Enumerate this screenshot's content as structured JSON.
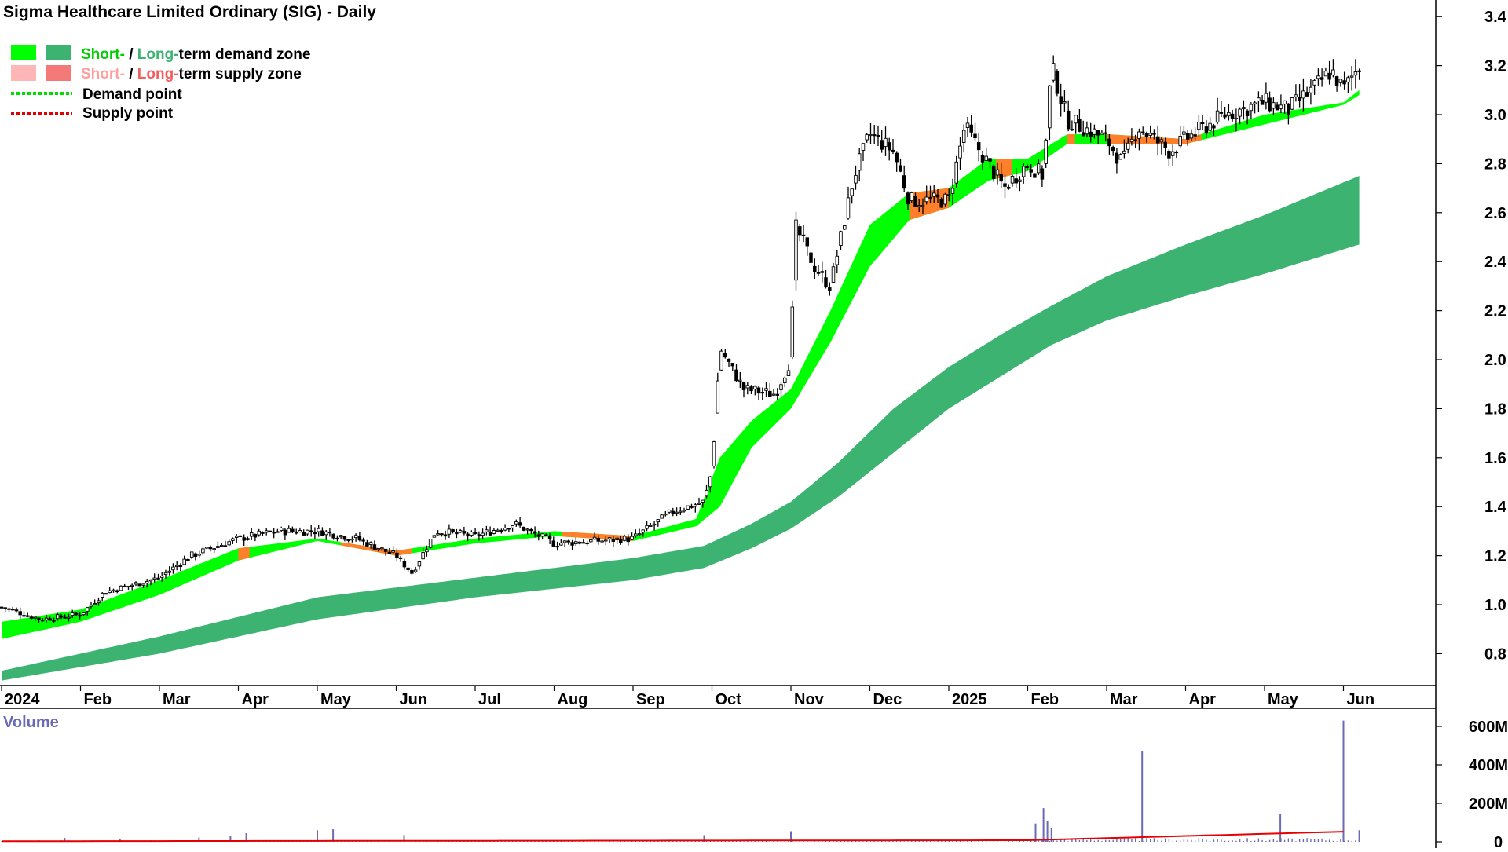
{
  "chart_data": {
    "type": "candlestick",
    "title": "Sigma Healthcare Limited Ordinary (SIG) - Daily",
    "legend": {
      "demand_zone": {
        "short": "Short-",
        "sep": "/",
        "long": "Long-",
        "rest": "term demand zone"
      },
      "supply_zone": {
        "short": "Short-",
        "sep": "/",
        "long": "Long-",
        "rest": "term supply zone"
      },
      "demand_point": "Demand point",
      "supply_point": "Supply point",
      "placement": "top-left"
    },
    "x_ticks": [
      "2024",
      "Feb",
      "Mar",
      "Apr",
      "May",
      "Jun",
      "Jul",
      "Aug",
      "Sep",
      "Oct",
      "Nov",
      "Dec",
      "2025",
      "Feb",
      "Mar",
      "Apr",
      "May",
      "Jun"
    ],
    "y_ticks": [
      "3.4",
      "3.2",
      "3.0",
      "2.8",
      "2.6",
      "2.4",
      "2.2",
      "2.0",
      "1.8",
      "1.6",
      "1.4",
      "1.2",
      "1.0",
      "0.8"
    ],
    "ylim": [
      0.65,
      3.45
    ],
    "price_anchors": [
      {
        "t": 0.0,
        "p": 0.99
      },
      {
        "t": 0.5,
        "p": 0.94
      },
      {
        "t": 1.0,
        "p": 0.96
      },
      {
        "t": 1.3,
        "p": 1.05
      },
      {
        "t": 2.0,
        "p": 1.11
      },
      {
        "t": 2.4,
        "p": 1.2
      },
      {
        "t": 3.0,
        "p": 1.27
      },
      {
        "t": 3.5,
        "p": 1.3
      },
      {
        "t": 4.0,
        "p": 1.3
      },
      {
        "t": 4.5,
        "p": 1.27
      },
      {
        "t": 5.0,
        "p": 1.2
      },
      {
        "t": 5.2,
        "p": 1.13
      },
      {
        "t": 5.5,
        "p": 1.3
      },
      {
        "t": 6.0,
        "p": 1.28
      },
      {
        "t": 6.5,
        "p": 1.33
      },
      {
        "t": 7.0,
        "p": 1.25
      },
      {
        "t": 7.5,
        "p": 1.26
      },
      {
        "t": 8.0,
        "p": 1.27
      },
      {
        "t": 8.5,
        "p": 1.38
      },
      {
        "t": 8.9,
        "p": 1.42
      },
      {
        "t": 9.0,
        "p": 1.55
      },
      {
        "t": 9.1,
        "p": 2.05
      },
      {
        "t": 9.4,
        "p": 1.88
      },
      {
        "t": 9.8,
        "p": 1.86
      },
      {
        "t": 10.0,
        "p": 2.0
      },
      {
        "t": 10.05,
        "p": 2.55
      },
      {
        "t": 10.3,
        "p": 2.38
      },
      {
        "t": 10.5,
        "p": 2.3
      },
      {
        "t": 10.8,
        "p": 2.75
      },
      {
        "t": 11.0,
        "p": 2.92
      },
      {
        "t": 11.3,
        "p": 2.85
      },
      {
        "t": 11.5,
        "p": 2.65
      },
      {
        "t": 12.0,
        "p": 2.65
      },
      {
        "t": 12.2,
        "p": 2.95
      },
      {
        "t": 12.5,
        "p": 2.8
      },
      {
        "t": 12.7,
        "p": 2.7
      },
      {
        "t": 13.0,
        "p": 2.8
      },
      {
        "t": 13.2,
        "p": 2.75
      },
      {
        "t": 13.3,
        "p": 3.2
      },
      {
        "t": 13.5,
        "p": 2.98
      },
      {
        "t": 14.0,
        "p": 2.9
      },
      {
        "t": 14.2,
        "p": 2.8
      },
      {
        "t": 14.4,
        "p": 2.95
      },
      {
        "t": 14.8,
        "p": 2.85
      },
      {
        "t": 15.0,
        "p": 2.9
      },
      {
        "t": 15.5,
        "p": 3.0
      },
      {
        "t": 16.0,
        "p": 3.05
      },
      {
        "t": 16.3,
        "p": 3.02
      },
      {
        "t": 16.6,
        "p": 3.1
      },
      {
        "t": 16.85,
        "p": 3.18
      },
      {
        "t": 17.0,
        "p": 3.1
      },
      {
        "t": 17.2,
        "p": 3.2
      }
    ],
    "long_zone_upper": [
      {
        "t": 0,
        "p": 0.73
      },
      {
        "t": 2,
        "p": 0.87
      },
      {
        "t": 4,
        "p": 1.03
      },
      {
        "t": 6,
        "p": 1.11
      },
      {
        "t": 8,
        "p": 1.19
      },
      {
        "t": 8.9,
        "p": 1.24
      },
      {
        "t": 9.5,
        "p": 1.33
      },
      {
        "t": 10,
        "p": 1.42
      },
      {
        "t": 10.6,
        "p": 1.58
      },
      {
        "t": 11.3,
        "p": 1.8
      },
      {
        "t": 12,
        "p": 1.97
      },
      {
        "t": 12.7,
        "p": 2.11
      },
      {
        "t": 13.3,
        "p": 2.22
      },
      {
        "t": 14,
        "p": 2.34
      },
      {
        "t": 15,
        "p": 2.47
      },
      {
        "t": 16,
        "p": 2.59
      },
      {
        "t": 17.2,
        "p": 2.75
      }
    ],
    "long_zone_lower": [
      {
        "t": 0,
        "p": 0.69
      },
      {
        "t": 2,
        "p": 0.8
      },
      {
        "t": 4,
        "p": 0.94
      },
      {
        "t": 6,
        "p": 1.03
      },
      {
        "t": 8,
        "p": 1.1
      },
      {
        "t": 8.9,
        "p": 1.15
      },
      {
        "t": 9.5,
        "p": 1.23
      },
      {
        "t": 10,
        "p": 1.31
      },
      {
        "t": 10.6,
        "p": 1.44
      },
      {
        "t": 11.3,
        "p": 1.62
      },
      {
        "t": 12,
        "p": 1.8
      },
      {
        "t": 12.7,
        "p": 1.94
      },
      {
        "t": 13.3,
        "p": 2.06
      },
      {
        "t": 14,
        "p": 2.16
      },
      {
        "t": 15,
        "p": 2.26
      },
      {
        "t": 16,
        "p": 2.35
      },
      {
        "t": 17.2,
        "p": 2.47
      }
    ],
    "short_zone_upper": [
      {
        "t": 0,
        "p": 0.93
      },
      {
        "t": 1,
        "p": 0.98
      },
      {
        "t": 2,
        "p": 1.1
      },
      {
        "t": 3,
        "p": 1.23
      },
      {
        "t": 4,
        "p": 1.27
      },
      {
        "t": 5,
        "p": 1.22
      },
      {
        "t": 6,
        "p": 1.27
      },
      {
        "t": 7,
        "p": 1.3
      },
      {
        "t": 8,
        "p": 1.28
      },
      {
        "t": 8.8,
        "p": 1.35
      },
      {
        "t": 9.1,
        "p": 1.6
      },
      {
        "t": 9.5,
        "p": 1.75
      },
      {
        "t": 10,
        "p": 1.88
      },
      {
        "t": 10.5,
        "p": 2.2
      },
      {
        "t": 11,
        "p": 2.55
      },
      {
        "t": 11.5,
        "p": 2.68
      },
      {
        "t": 12,
        "p": 2.7
      },
      {
        "t": 12.5,
        "p": 2.82
      },
      {
        "t": 13,
        "p": 2.82
      },
      {
        "t": 13.5,
        "p": 2.92
      },
      {
        "t": 14,
        "p": 2.92
      },
      {
        "t": 15,
        "p": 2.9
      },
      {
        "t": 16,
        "p": 3.0
      },
      {
        "t": 17,
        "p": 3.05
      },
      {
        "t": 17.2,
        "p": 3.1
      }
    ],
    "short_zone_lower": [
      {
        "t": 0,
        "p": 0.86
      },
      {
        "t": 1,
        "p": 0.93
      },
      {
        "t": 2,
        "p": 1.04
      },
      {
        "t": 3,
        "p": 1.18
      },
      {
        "t": 4,
        "p": 1.26
      },
      {
        "t": 5,
        "p": 1.2
      },
      {
        "t": 6,
        "p": 1.25
      },
      {
        "t": 7,
        "p": 1.28
      },
      {
        "t": 8,
        "p": 1.26
      },
      {
        "t": 8.8,
        "p": 1.32
      },
      {
        "t": 9.1,
        "p": 1.4
      },
      {
        "t": 9.5,
        "p": 1.64
      },
      {
        "t": 10,
        "p": 1.8
      },
      {
        "t": 10.5,
        "p": 2.07
      },
      {
        "t": 11,
        "p": 2.38
      },
      {
        "t": 11.5,
        "p": 2.57
      },
      {
        "t": 12,
        "p": 2.62
      },
      {
        "t": 12.5,
        "p": 2.73
      },
      {
        "t": 13,
        "p": 2.77
      },
      {
        "t": 13.5,
        "p": 2.88
      },
      {
        "t": 14,
        "p": 2.88
      },
      {
        "t": 15,
        "p": 2.88
      },
      {
        "t": 16,
        "p": 2.96
      },
      {
        "t": 17,
        "p": 3.04
      },
      {
        "t": 17.2,
        "p": 3.08
      }
    ],
    "supply_segments": [
      {
        "t0": 3.0,
        "t1": 3.15
      },
      {
        "t0": 4.3,
        "t1": 5.2
      },
      {
        "t0": 7.1,
        "t1": 8.0
      },
      {
        "t0": 11.5,
        "t1": 12.0
      },
      {
        "t0": 12.6,
        "t1": 12.8
      },
      {
        "t0": 13.5,
        "t1": 13.6
      },
      {
        "t0": 14.0,
        "t1": 15.2
      }
    ],
    "volume": {
      "label": "Volume",
      "y_ticks": [
        "600M",
        "400M",
        "200M",
        "0"
      ],
      "ylim": [
        0,
        650
      ],
      "units": "M",
      "spikes": [
        {
          "t": 0.8,
          "v": 20
        },
        {
          "t": 1.5,
          "v": 15
        },
        {
          "t": 2.5,
          "v": 22
        },
        {
          "t": 2.9,
          "v": 30
        },
        {
          "t": 3.1,
          "v": 45
        },
        {
          "t": 4.0,
          "v": 60
        },
        {
          "t": 4.2,
          "v": 65
        },
        {
          "t": 5.1,
          "v": 35
        },
        {
          "t": 8.9,
          "v": 35
        },
        {
          "t": 10.0,
          "v": 55
        },
        {
          "t": 13.1,
          "v": 95
        },
        {
          "t": 13.2,
          "v": 175
        },
        {
          "t": 13.25,
          "v": 110
        },
        {
          "t": 13.3,
          "v": 70
        },
        {
          "t": 14.45,
          "v": 470
        },
        {
          "t": 16.2,
          "v": 145
        },
        {
          "t": 17.0,
          "v": 630
        },
        {
          "t": 17.2,
          "v": 60
        }
      ],
      "average_start": 3,
      "average_end": 55
    },
    "colors": {
      "short_demand": "#00ff00",
      "long_demand": "#3cb371",
      "short_supply_legend": "#ffb6b6",
      "long_supply_legend": "#f47a7a",
      "supply_band": "#ff7f2a",
      "candle": "#000000",
      "volume_bar": "#6b6bb5",
      "volume_avg": "#e60000"
    }
  }
}
